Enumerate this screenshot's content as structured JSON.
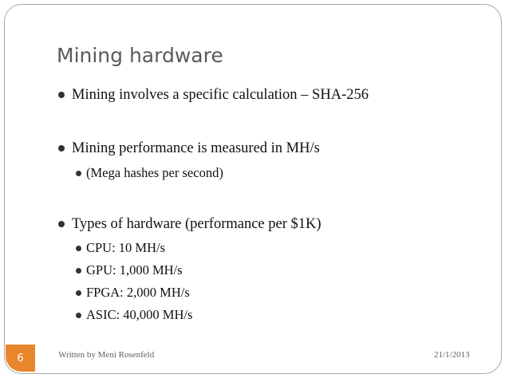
{
  "slide": {
    "title": "Mining hardware",
    "number": "6"
  },
  "content": {
    "bullets": [
      {
        "level": 1,
        "text": "Mining involves a specific calculation – SHA-256"
      },
      {
        "level": 1,
        "text": "Mining performance is measured in MH/s"
      },
      {
        "level": 2,
        "text": "(Mega hashes per second)"
      },
      {
        "level": 1,
        "text": "Types of hardware (performance per $1K)"
      },
      {
        "level": 2,
        "text": "CPU: 10 MH/s"
      },
      {
        "level": 2,
        "text": "GPU: 1,000 MH/s"
      },
      {
        "level": 2,
        "text": "FPGA: 2,000 MH/s"
      },
      {
        "level": 2,
        "text": "ASIC: 40,000 MH/s"
      }
    ]
  },
  "footer": {
    "author": "Written by Meni Rosenfeld",
    "date": "21/1/2013"
  },
  "colors": {
    "accent": "#e9862b",
    "title": "#5a5a5a",
    "frame": "#a7a7a7"
  }
}
